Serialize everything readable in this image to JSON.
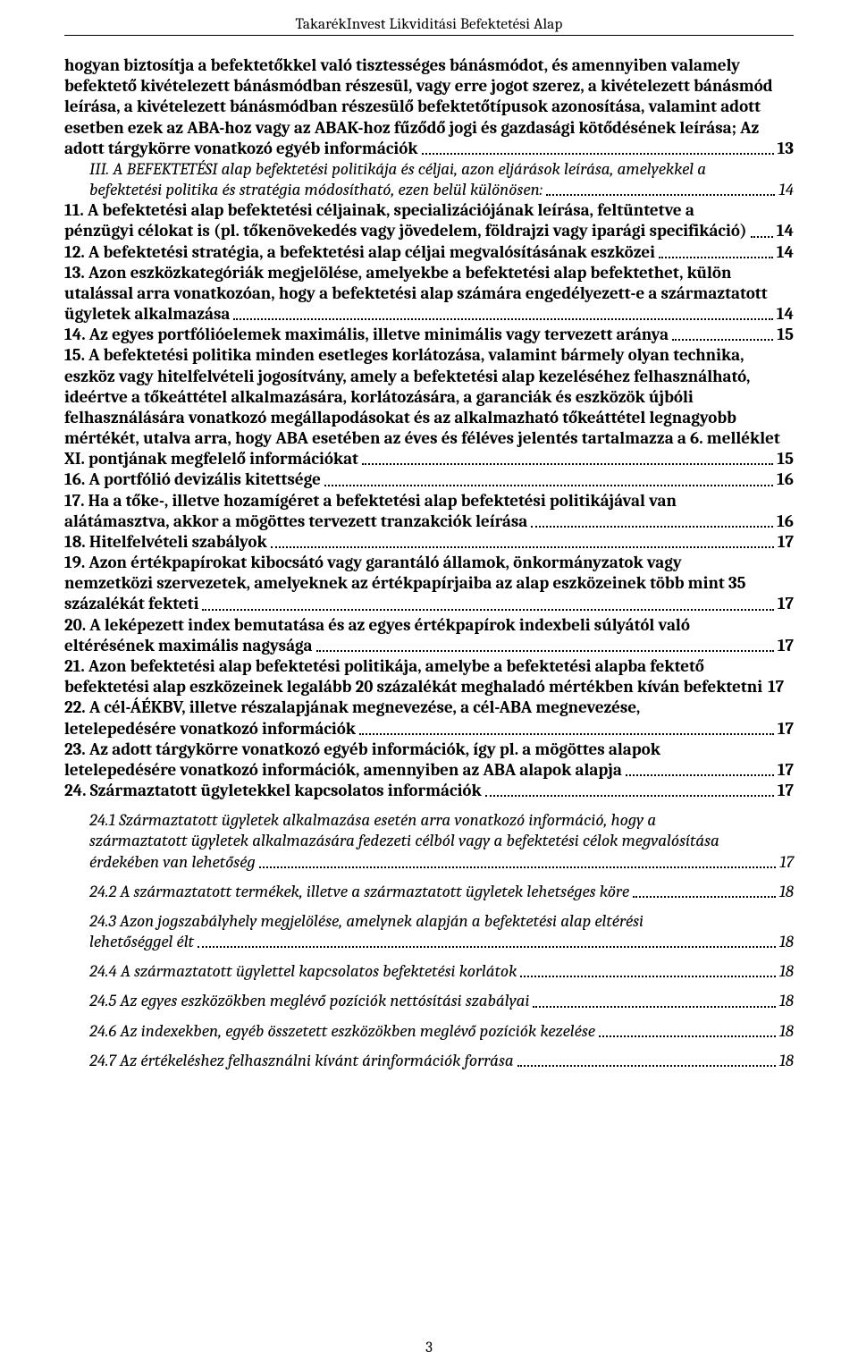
{
  "header": {
    "title": "TakarékInvest Likviditási Befektetési Alap"
  },
  "page_number": "3",
  "toc": {
    "entries": [
      {
        "kind": "bold",
        "lines": [
          "hogyan biztosítja a befektetőkkel való tisztességes bánásmódot, és amennyiben valamely",
          "befektető kivételezett bánásmódban részesül, vagy erre jogot szerez, a kivételezett bánásmód",
          "leírása, a kivételezett bánásmódban részesülő befektetőtípusok azonosítása, valamint adott",
          "esetben ezek az ABA-hoz vagy az ABAK-hoz fűződő jogi és gazdasági kötődésének leírása; Az",
          "adott tárgykörre vonatkozó egyéb információk"
        ],
        "page": "13"
      },
      {
        "kind": "italic",
        "indent": true,
        "lines": [
          "III.    A BEFEKTETÉSI alap befektetési politikája és céljai, azon eljárások leírása, amelyekkel a",
          "befektetési politika és stratégia módosítható, ezen belül különösen:"
        ],
        "page": "14"
      },
      {
        "kind": "bold",
        "lines": [
          "11.      A befektetési alap befektetési céljainak, specializációjának leírása, feltüntetve a",
          "pénzügyi célokat is (pl. tőkenövekedés vagy jövedelem, földrajzi vagy iparági specifikáció)"
        ],
        "page": "14"
      },
      {
        "kind": "bold",
        "lines": [
          "12.      A befektetési stratégia, a befektetési alap céljai megvalósításának eszközei"
        ],
        "page": "14"
      },
      {
        "kind": "bold",
        "lines": [
          "13.      Azon eszközkategóriák megjelölése, amelyekbe a befektetési alap befektethet, külön",
          "utalással arra vonatkozóan, hogy a befektetési alap számára engedélyezett-e a származtatott",
          "ügyletek alkalmazása"
        ],
        "page": "14"
      },
      {
        "kind": "bold",
        "lines": [
          "14.      Az egyes portfólióelemek maximális, illetve minimális vagy tervezett aránya"
        ],
        "page": "15"
      },
      {
        "kind": "bold",
        "lines": [
          "15.      A befektetési politika minden esetleges korlátozása, valamint bármely olyan technika,",
          "eszköz vagy hitelfelvételi jogosítvány, amely a befektetési alap kezeléséhez felhasználható,",
          "ideértve a tőkeáttétel alkalmazására, korlátozására, a garanciák és eszközök újbóli",
          "felhasználására vonatkozó megállapodásokat és az alkalmazható tőkeáttétel legnagyobb",
          "mértékét, utalva arra, hogy ABA esetében az éves és féléves jelentés tartalmazza a 6. melléklet",
          "XI. pontjának megfelelő információkat"
        ],
        "page": "15"
      },
      {
        "kind": "bold",
        "lines": [
          "16.      A portfólió devizális kitettsége"
        ],
        "page": "16"
      },
      {
        "kind": "bold",
        "lines": [
          "17.      Ha a tőke-, illetve hozamígéret a befektetési alap befektetési politikájával van",
          "alátámasztva, akkor a mögöttes tervezett tranzakciók leírása"
        ],
        "page": "16"
      },
      {
        "kind": "bold",
        "lines": [
          "18.      Hitelfelvételi szabályok"
        ],
        "page": "17"
      },
      {
        "kind": "bold",
        "lines": [
          "19.      Azon értékpapírokat kibocsátó vagy garantáló államok, önkormányzatok vagy",
          "nemzetközi szervezetek, amelyeknek az értékpapírjaiba az alap eszközeinek több mint 35",
          "százalékát fekteti"
        ],
        "page": "17"
      },
      {
        "kind": "bold",
        "lines": [
          "20.      A leképezett index bemutatása és az egyes értékpapírok indexbeli súlyától való",
          "eltérésének maximális nagysága"
        ],
        "page": "17"
      },
      {
        "kind": "bold",
        "lines": [
          "21.      Azon befektetési alap befektetési politikája, amelybe a befektetési alapba fektető",
          "befektetési alap eszközeinek legalább 20 százalékát meghaladó mértékben kíván befektetni"
        ],
        "page": "17",
        "no_leader": true
      },
      {
        "kind": "bold",
        "lines": [
          "22.      A cél-ÁÉKBV, illetve részalapjának megnevezése, a cél-ABA megnevezése,",
          "letelepedésére vonatkozó információk"
        ],
        "page": "17"
      },
      {
        "kind": "bold",
        "lines": [
          "23.      Az adott tárgykörre vonatkozó egyéb információk, így pl. a mögöttes alapok",
          "letelepedésére vonatkozó információk, amennyiben az ABA alapok alapja"
        ],
        "page": "17"
      },
      {
        "kind": "bold",
        "lines": [
          "24.      Származtatott ügyletekkel kapcsolatos információk"
        ],
        "page": "17"
      },
      {
        "kind": "italic",
        "indent": true,
        "before_gap": true,
        "lines": [
          "24.1     Származtatott ügyletek alkalmazása esetén arra vonatkozó információ, hogy a",
          "származtatott ügyletek alkalmazására fedezeti célból vagy a befektetési célok megvalósítása",
          "érdekében van lehetőség"
        ],
        "page": "17"
      },
      {
        "kind": "italic",
        "indent": true,
        "before_gap": true,
        "lines": [
          "24.2     A származtatott termékek, illetve a származtatott ügyletek lehetséges köre"
        ],
        "page": "18"
      },
      {
        "kind": "italic",
        "indent": true,
        "before_gap": true,
        "lines": [
          "24.3     Azon jogszabályhely megjelölése, amelynek alapján a befektetési alap eltérési",
          "lehetőséggel élt"
        ],
        "page": "18"
      },
      {
        "kind": "italic",
        "indent": true,
        "before_gap": true,
        "lines": [
          "24.4     A származtatott ügylettel kapcsolatos befektetési korlátok"
        ],
        "page": "18"
      },
      {
        "kind": "italic",
        "indent": true,
        "before_gap": true,
        "lines": [
          "24.5     Az egyes eszközökben meglévő pozíciók nettósítási szabályai"
        ],
        "page": "18"
      },
      {
        "kind": "italic",
        "indent": true,
        "before_gap": true,
        "lines": [
          "24.6     Az indexekben, egyéb összetett eszközökben meglévő pozíciók kezelése"
        ],
        "page": "18"
      },
      {
        "kind": "italic",
        "indent": true,
        "before_gap": true,
        "lines": [
          "24.7     Az értékeléshez felhasználni kívánt árinformációk forrása"
        ],
        "page": "18"
      }
    ]
  }
}
